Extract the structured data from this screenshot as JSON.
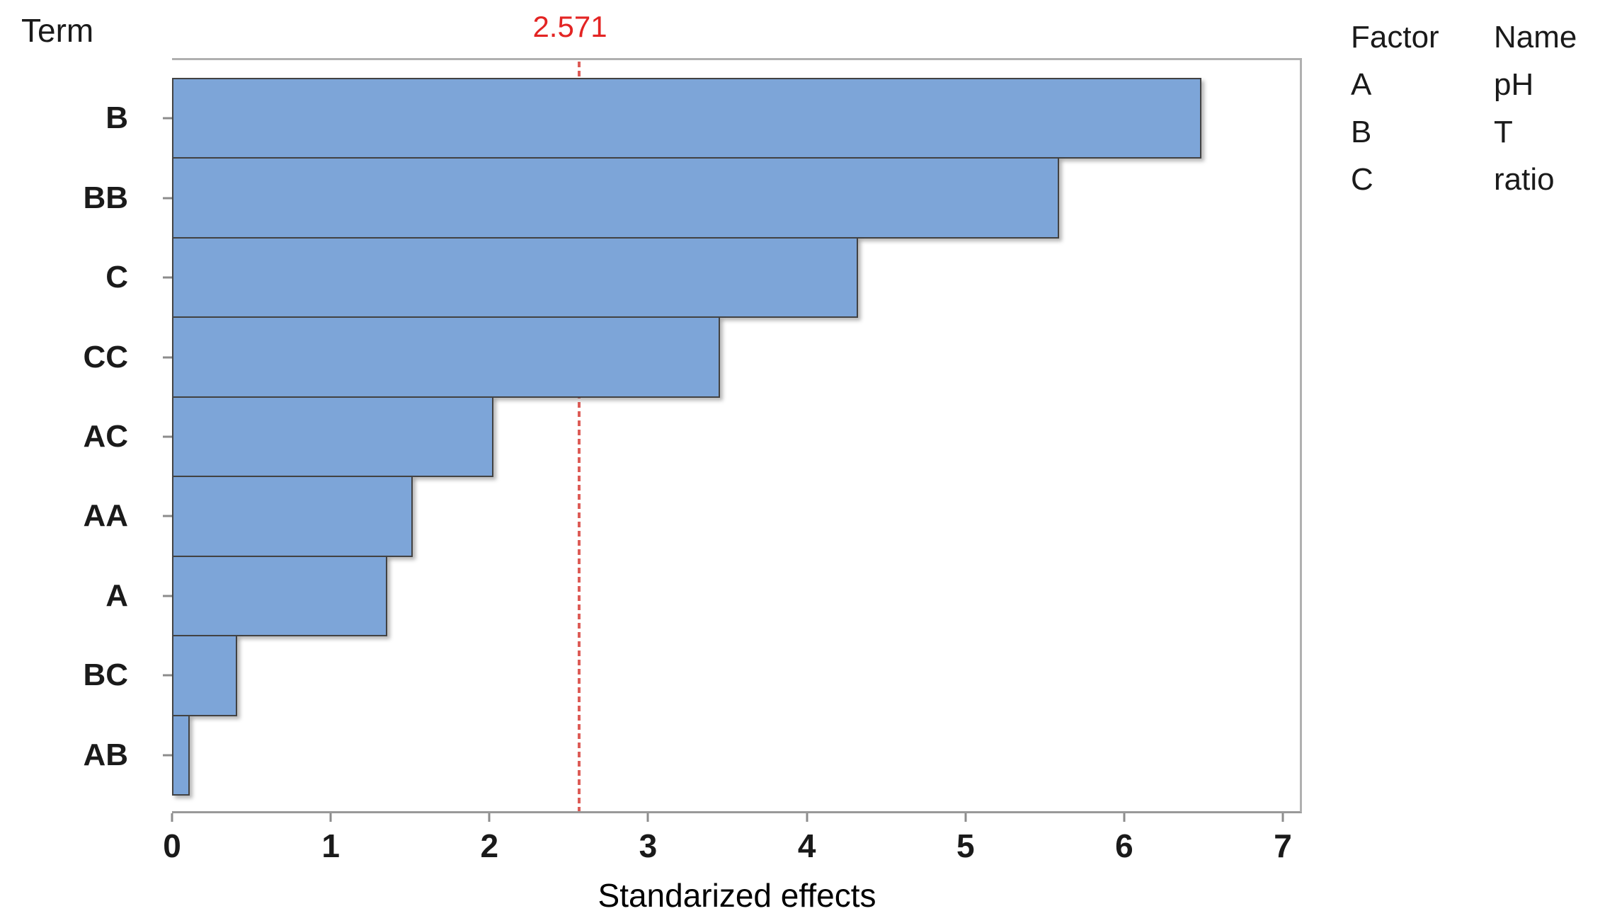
{
  "chart_data": {
    "type": "bar",
    "orientation": "horizontal",
    "title": "",
    "ylabel": "Term",
    "xlabel": "Standarized effects",
    "categories": [
      "B",
      "BB",
      "C",
      "CC",
      "AC",
      "AA",
      "A",
      "BC",
      "AB"
    ],
    "values": [
      6.5,
      5.6,
      4.33,
      3.46,
      2.03,
      1.52,
      1.36,
      0.41,
      0.11
    ],
    "xticks": [
      "0",
      "1",
      "2",
      "3",
      "4",
      "5",
      "6",
      "7"
    ],
    "xlim": [
      0,
      7.12
    ],
    "grid": false,
    "reference_line": {
      "value": 2.571,
      "label": "2.571",
      "style": "dashed",
      "color": "#dd5c57",
      "label_color": "#e32423"
    },
    "legend": {
      "position": "top-right",
      "headers": [
        "Factor",
        "Name"
      ],
      "entries": [
        {
          "factor": "A",
          "name": "pH"
        },
        {
          "factor": "B",
          "name": "T"
        },
        {
          "factor": "C",
          "name": "ratio"
        }
      ]
    },
    "bar_color": "#7da5d8",
    "bar_border_color": "#424242",
    "frame_color": "#b0b0b0",
    "tick_color": "#8c8c8c"
  }
}
